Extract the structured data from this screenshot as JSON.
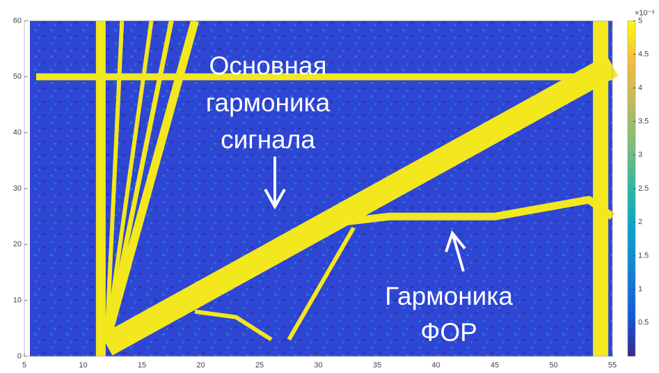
{
  "chart_data": {
    "type": "heatmap",
    "xlim": [
      5,
      55
    ],
    "ylim": [
      0,
      60
    ],
    "xticks": [
      5,
      10,
      15,
      20,
      25,
      30,
      35,
      40,
      45,
      50,
      55
    ],
    "yticks": [
      0,
      10,
      20,
      30,
      40,
      50,
      60
    ],
    "clim": [
      0,
      5
    ],
    "cticks": [
      0.5,
      1,
      1.5,
      2,
      2.5,
      3,
      3.5,
      4,
      4.5,
      5
    ],
    "colorbar_exponent_label": "×10⁻³",
    "colormap": [
      "#352a87",
      "#0f5cdd",
      "#1481d6",
      "#06a4ca",
      "#2eb7a4",
      "#7abf7c",
      "#bbbc5b",
      "#f5ba3f",
      "#f9fb0e"
    ],
    "background_color": "#2f45d4",
    "ridge_color": "#f2e81d",
    "ridges": [
      {
        "x": [
          12,
          55
        ],
        "y": [
          2,
          52
        ]
      },
      {
        "x": [
          6,
          55
        ],
        "y": [
          50,
          50
        ]
      },
      {
        "x": [
          54,
          54
        ],
        "y": [
          0,
          60
        ]
      },
      {
        "x": [
          11.5,
          11.5
        ],
        "y": [
          0,
          60
        ]
      },
      {
        "x": [
          12,
          19.5
        ],
        "y": [
          3,
          60
        ]
      },
      {
        "x": [
          12,
          17.5
        ],
        "y": [
          3,
          60
        ]
      },
      {
        "x": [
          12,
          15.8
        ],
        "y": [
          3,
          60
        ]
      },
      {
        "x": [
          12,
          13.3
        ],
        "y": [
          3,
          60
        ]
      },
      {
        "x": [
          32,
          36,
          45,
          53,
          55
        ],
        "y": [
          24,
          25,
          25,
          28,
          25
        ]
      },
      {
        "x": [
          27.5,
          33
        ],
        "y": [
          3,
          23
        ]
      },
      {
        "x": [
          19.5,
          23,
          26
        ],
        "y": [
          8,
          7,
          3
        ]
      }
    ],
    "annotations": [
      {
        "lines": [
          "Основная",
          "гармоника",
          "сигнала"
        ]
      },
      {
        "lines": [
          "Гармоника",
          "ФОР"
        ]
      }
    ]
  }
}
